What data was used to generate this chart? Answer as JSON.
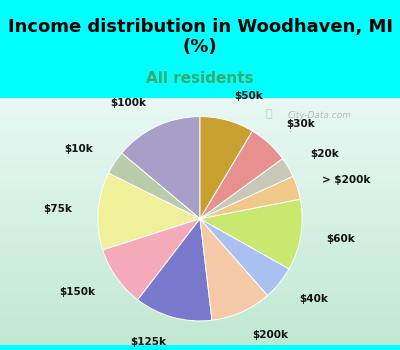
{
  "title": "Income distribution in Woodhaven, MI\n(%)",
  "subtitle": "All residents",
  "title_fontsize": 13,
  "subtitle_fontsize": 11,
  "title_color": "#000000",
  "subtitle_color": "#3aaa6a",
  "bg_color": "#00FFFF",
  "chart_bg": "#d8f0e8",
  "watermark": "City-Data.com",
  "slices": [
    {
      "label": "$100k",
      "value": 13.0,
      "color": "#a89fc8"
    },
    {
      "label": "$10k",
      "value": 3.5,
      "color": "#b8ccaa"
    },
    {
      "label": "$75k",
      "value": 11.5,
      "color": "#f0f09a"
    },
    {
      "label": "$150k",
      "value": 9.0,
      "color": "#f4aab8"
    },
    {
      "label": "$125k",
      "value": 11.5,
      "color": "#7878cc"
    },
    {
      "label": "$200k",
      "value": 9.0,
      "color": "#f5c8a8"
    },
    {
      "label": "$40k",
      "value": 5.0,
      "color": "#aac0f0"
    },
    {
      "label": "$60k",
      "value": 10.5,
      "color": "#c8e870"
    },
    {
      "label": "> $200k",
      "value": 3.5,
      "color": "#f0c888"
    },
    {
      "label": "$20k",
      "value": 3.0,
      "color": "#c8c8b8"
    },
    {
      "label": "$30k",
      "value": 6.0,
      "color": "#e89090"
    },
    {
      "label": "$50k",
      "value": 8.0,
      "color": "#c8a030"
    }
  ],
  "startangle": 90,
  "label_fontsize": 7.5,
  "label_distance": 1.25,
  "title_split": 0.72
}
